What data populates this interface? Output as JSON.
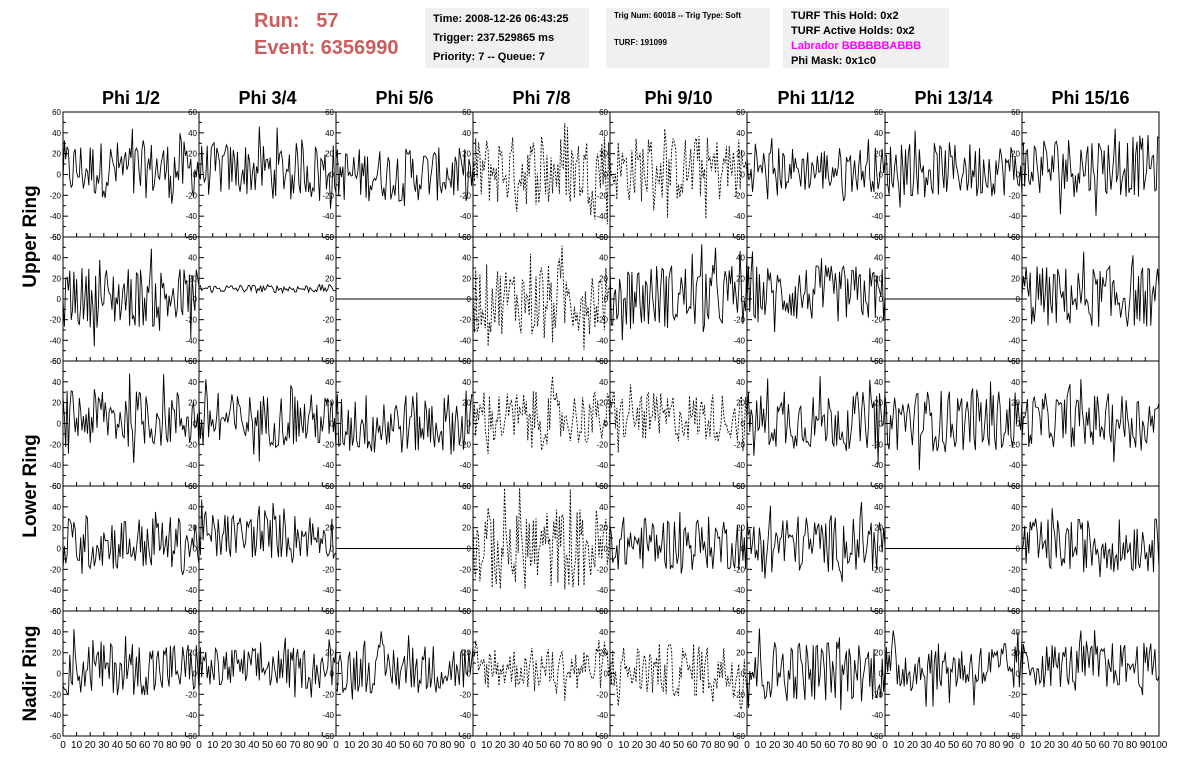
{
  "header": {
    "run_label": "Run:",
    "run_value": "57",
    "event_label": "Event:",
    "event_value": "6356990"
  },
  "time_box": {
    "time": "Time: 2008-12-26 06:43:25",
    "trigger": "Trigger: 237.529865 ms",
    "priority": "Priority: 7 -- Queue: 7"
  },
  "trig_box": {
    "trig": "Trig Num: 60018 -- Trig Type: Soft",
    "turf": "TURF: 191099"
  },
  "turf_box": {
    "this_hold": "TURF This Hold: 0x2",
    "active_holds": "TURF Active Holds: 0x2",
    "labrador": "Labrador BBBBBBABBB",
    "phi_mask": "Phi Mask: 0x1c0"
  },
  "colors": {
    "header_red": "#cd5c5c",
    "labrador_magenta": "#ff00ff",
    "box_bg": "#f0f0f0"
  },
  "chart_data": {
    "type": "line",
    "columns": [
      "Phi 1/2",
      "Phi 3/4",
      "Phi 5/6",
      "Phi 7/8",
      "Phi 9/10",
      "Phi 11/12",
      "Phi 13/14",
      "Phi 15/16"
    ],
    "ring_labels": [
      {
        "label": "Upper Ring",
        "rows": [
          0,
          1
        ]
      },
      {
        "label": "Lower Ring",
        "rows": [
          2,
          3
        ]
      },
      {
        "label": "Nadir Ring",
        "rows": [
          4,
          4
        ]
      }
    ],
    "xlim": [
      0,
      100
    ],
    "ylim": [
      -60,
      60
    ],
    "xticks": [
      0,
      10,
      20,
      30,
      40,
      50,
      60,
      70,
      80,
      90,
      100
    ],
    "yticks": [
      -60,
      -40,
      -20,
      0,
      20,
      40,
      60
    ],
    "samples": 100,
    "style_codes": "0 = noisy solid waveform, 1 = flat line at 0, 2 = dashed (masked phi) waveform, 3 = small-amplitude offset waveform",
    "panels": [
      [
        {
          "style": 0,
          "amp": 28,
          "offset": 5
        },
        {
          "style": 0,
          "amp": 26,
          "offset": 5
        },
        {
          "style": 0,
          "amp": 26,
          "offset": 0
        },
        {
          "style": 2,
          "amp": 34,
          "offset": 4
        },
        {
          "style": 2,
          "amp": 32,
          "offset": 5
        },
        {
          "style": 0,
          "amp": 22,
          "offset": 5
        },
        {
          "style": 0,
          "amp": 26,
          "offset": 5
        },
        {
          "style": 0,
          "amp": 30,
          "offset": 8
        }
      ],
      [
        {
          "style": 0,
          "amp": 30,
          "offset": 2
        },
        {
          "style": 3,
          "amp": 4,
          "offset": 10
        },
        {
          "style": 1,
          "amp": 0,
          "offset": 0
        },
        {
          "style": 2,
          "amp": 34,
          "offset": 0
        },
        {
          "style": 0,
          "amp": 32,
          "offset": 3
        },
        {
          "style": 0,
          "amp": 28,
          "offset": 5
        },
        {
          "style": 1,
          "amp": 0,
          "offset": 0
        },
        {
          "style": 0,
          "amp": 30,
          "offset": 2
        }
      ],
      [
        {
          "style": 0,
          "amp": 28,
          "offset": 5
        },
        {
          "style": 0,
          "amp": 26,
          "offset": 3
        },
        {
          "style": 0,
          "amp": 30,
          "offset": 0
        },
        {
          "style": 2,
          "amp": 26,
          "offset": 5
        },
        {
          "style": 2,
          "amp": 24,
          "offset": 6
        },
        {
          "style": 0,
          "amp": 28,
          "offset": 3
        },
        {
          "style": 0,
          "amp": 30,
          "offset": 3
        },
        {
          "style": 0,
          "amp": 26,
          "offset": 3
        }
      ],
      [
        {
          "style": 0,
          "amp": 26,
          "offset": 5
        },
        {
          "style": 0,
          "amp": 22,
          "offset": 12
        },
        {
          "style": 1,
          "amp": 0,
          "offset": 0
        },
        {
          "style": 2,
          "amp": 40,
          "offset": 0
        },
        {
          "style": 0,
          "amp": 26,
          "offset": 5
        },
        {
          "style": 0,
          "amp": 28,
          "offset": 5
        },
        {
          "style": 1,
          "amp": 0,
          "offset": 0
        },
        {
          "style": 0,
          "amp": 26,
          "offset": 3
        }
      ],
      [
        {
          "style": 0,
          "amp": 26,
          "offset": 5
        },
        {
          "style": 0,
          "amp": 20,
          "offset": 5
        },
        {
          "style": 0,
          "amp": 24,
          "offset": 5
        },
        {
          "style": 2,
          "amp": 20,
          "offset": 5
        },
        {
          "style": 2,
          "amp": 26,
          "offset": 3
        },
        {
          "style": 0,
          "amp": 30,
          "offset": 3
        },
        {
          "style": 0,
          "amp": 24,
          "offset": 5
        },
        {
          "style": 0,
          "amp": 22,
          "offset": 8
        }
      ]
    ]
  }
}
